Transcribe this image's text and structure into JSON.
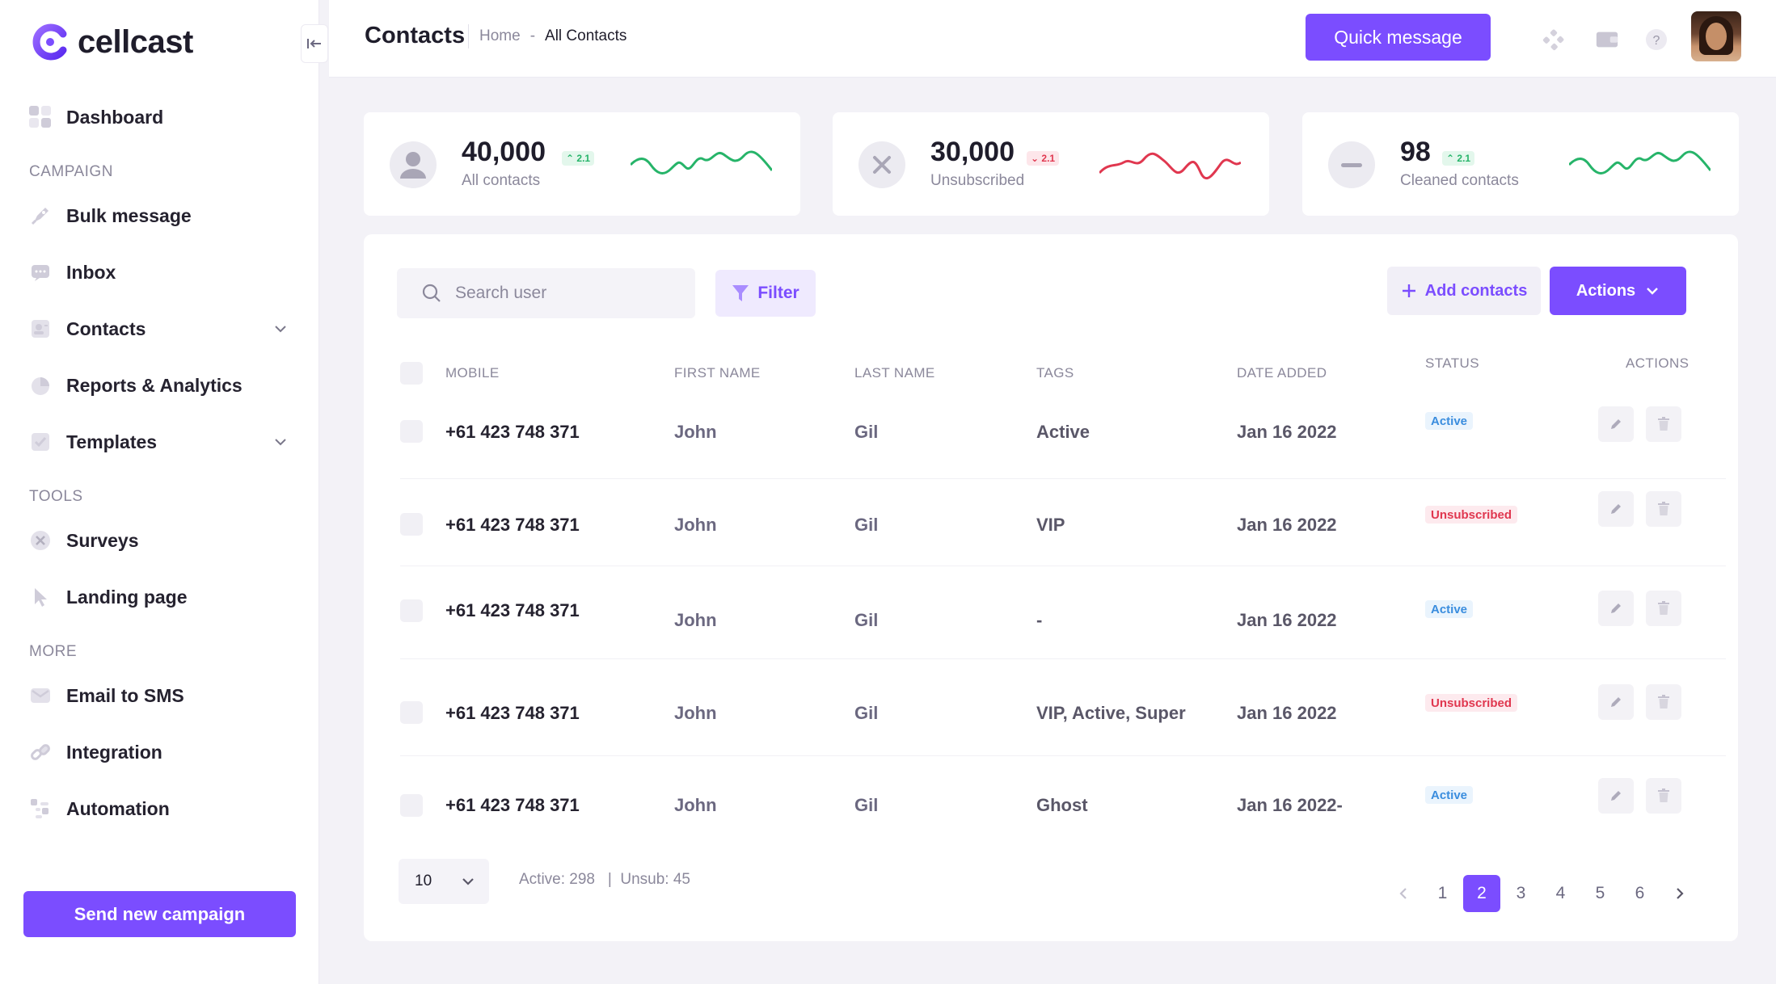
{
  "brand": {
    "name": "cellcast"
  },
  "sidebar": {
    "dashboard": "Dashboard",
    "sections": {
      "campaign": "CAMPAIGN",
      "tools": "TOOLS",
      "more": "MORE"
    },
    "items": [
      {
        "label": "Bulk message"
      },
      {
        "label": "Inbox"
      },
      {
        "label": "Contacts"
      },
      {
        "label": "Reports & Analytics"
      },
      {
        "label": "Templates"
      },
      {
        "label": "Surveys"
      },
      {
        "label": "Landing page"
      },
      {
        "label": "Email to SMS"
      },
      {
        "label": "Integration"
      },
      {
        "label": "Automation"
      }
    ],
    "send_campaign": "Send new campaign"
  },
  "header": {
    "title": "Contacts",
    "breadcrumb": {
      "home": "Home",
      "sep": "-",
      "current": "All Contacts"
    },
    "quick_message": "Quick message",
    "help": "?"
  },
  "stats": [
    {
      "value": "40,000",
      "label": "All contacts",
      "badge": "2.1",
      "trend": "up",
      "color": "#26b469"
    },
    {
      "value": "30,000",
      "label": "Unsubscribed",
      "badge": "2.1",
      "trend": "down",
      "color": "#e0374f"
    },
    {
      "value": "98",
      "label": "Cleaned contacts",
      "badge": "2.1",
      "trend": "up",
      "color": "#26b469"
    }
  ],
  "toolbar": {
    "search_placeholder": "Search user",
    "filter": "Filter",
    "add_contacts": "Add contacts",
    "actions": "Actions"
  },
  "table": {
    "columns": [
      "MOBILE",
      "FIRST NAME",
      "LAST NAME",
      "TAGS",
      "DATE ADDED",
      "STATUS",
      "ACTIONS"
    ],
    "rows": [
      {
        "mobile": "+61 423 748 371",
        "first": "John",
        "last": "Gil",
        "tags": "Active",
        "date": "Jan 16 2022",
        "status": "Active"
      },
      {
        "mobile": "+61 423 748 371",
        "first": "John",
        "last": "Gil",
        "tags": "VIP",
        "date": "Jan 16 2022",
        "status": "Unsubscribed"
      },
      {
        "mobile": "+61 423 748 371",
        "first": "John",
        "last": "Gil",
        "tags": "-",
        "date": "Jan 16 2022",
        "status": "Active"
      },
      {
        "mobile": "+61 423 748 371",
        "first": "John",
        "last": "Gil",
        "tags": "VIP, Active, Super",
        "date": "Jan 16 2022",
        "status": "Unsubscribed"
      },
      {
        "mobile": "+61 423 748 371",
        "first": "John",
        "last": "Gil",
        "tags": "Ghost",
        "date": "Jan 16 2022-",
        "status": "Active"
      }
    ]
  },
  "footer": {
    "per_page": "10",
    "summary_active": "Active: 298",
    "summary_sep": "|",
    "summary_unsub": "Unsub: 45",
    "pages": [
      "1",
      "2",
      "3",
      "4",
      "5",
      "6"
    ],
    "current_page": "2"
  },
  "colors": {
    "accent": "#7b4dff",
    "success": "#26b469",
    "danger": "#e0374f",
    "info": "#3a8dde"
  }
}
